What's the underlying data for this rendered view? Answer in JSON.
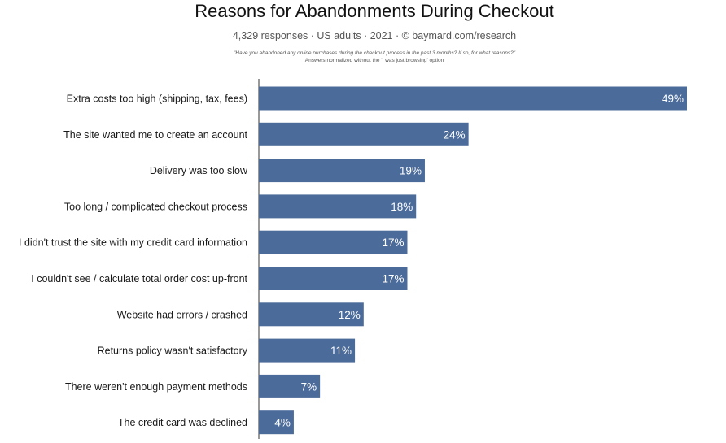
{
  "header": {
    "title": "Reasons for Abandonments During Checkout",
    "subtitle": "4,329 responses  ·  US adults  ·  2021  ·  © baymard.com/research",
    "question": "\"Have you abandoned any online purchases during the checkout process in the past 3 months? If so, for what reasons?\"",
    "note": "Answers normalized without the 'I was just browsing' option"
  },
  "chart_data": {
    "type": "bar",
    "orientation": "horizontal",
    "title": "Reasons for Abandonments During Checkout",
    "categories": [
      "Extra costs too high (shipping, tax, fees)",
      "The site wanted me to create an account",
      "Delivery was too slow",
      "Too long / complicated checkout process",
      "I didn't trust the site with my credit card information",
      "I couldn't see / calculate total order cost up-front",
      "Website had errors / crashed",
      "Returns policy wasn't satisfactory",
      "There weren't enough payment methods",
      "The credit card was declined"
    ],
    "values": [
      49,
      24,
      19,
      18,
      17,
      17,
      12,
      11,
      7,
      4
    ],
    "value_labels": [
      "49%",
      "24%",
      "19%",
      "18%",
      "17%",
      "17%",
      "12%",
      "11%",
      "7%",
      "4%"
    ],
    "unit": "%",
    "xlim": [
      0,
      49
    ],
    "grid": false,
    "legend": "none",
    "bar_color": "#4b6b9a"
  }
}
